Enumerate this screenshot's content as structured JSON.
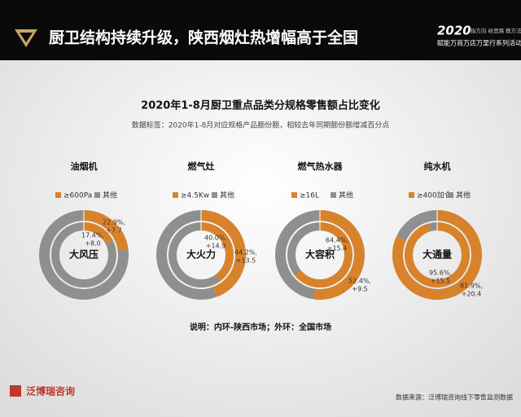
{
  "header": {
    "title": "厨卫结构持续升级，陕西烟灶热增幅高于全国",
    "badge_year": "2020",
    "badge_slogan": "指方向 给思路 教方法",
    "badge_event": "赋能万商万店万里行系列活动"
  },
  "chart_title": "2020年1-8月厨卫重点品类分规格零售额占比变化",
  "chart_subtitle": "数据标签：2020年1-8月对应规格产品额份额，相较去年同期额份额增减百分点",
  "note": "说明：内环-陕西市场；外环：全国市场",
  "footer": {
    "brand": "泛博瑞咨询",
    "source": "数据来源：泛博瑞咨询线下零售监测数据"
  },
  "chart_data": [
    {
      "type": "donut",
      "title": "油烟机",
      "center_label": "大风压",
      "series": [
        {
          "name": "≥600Pa",
          "color": "#d8832c",
          "values": [
            17.4,
            22.9
          ],
          "value_labels": [
            "17.4%,",
            "22.9%,"
          ],
          "changes": [
            8.0,
            7.7
          ],
          "change_labels": [
            "+8.0",
            "+7.7"
          ]
        },
        {
          "name": "其他",
          "color": "#8f8f8f"
        }
      ]
    },
    {
      "type": "donut",
      "title": "燃气灶",
      "center_label": "大火力",
      "series": [
        {
          "name": "≥4.5Kw",
          "color": "#d8832c",
          "values": [
            40.0,
            44.2
          ],
          "value_labels": [
            "40.0%,",
            "44.2%,"
          ],
          "changes": [
            14.9,
            13.5
          ],
          "change_labels": [
            "+14.9",
            "+13.5"
          ]
        },
        {
          "name": "其他",
          "color": "#8f8f8f"
        }
      ]
    },
    {
      "type": "donut",
      "title": "燃气热水器",
      "center_label": "大容积",
      "series": [
        {
          "name": "≥16L",
          "color": "#d8832c",
          "values": [
            64.4,
            52.4
          ],
          "value_labels": [
            "64.4%,",
            "52.4%,"
          ],
          "changes": [
            15.4,
            9.5
          ],
          "change_labels": [
            "+15.4",
            "+9.5"
          ]
        },
        {
          "name": "其他",
          "color": "#8f8f8f"
        }
      ]
    },
    {
      "type": "donut",
      "title": "纯水机",
      "center_label": "大通量",
      "series": [
        {
          "name": "≥400加仑",
          "color": "#d8832c",
          "values": [
            95.6,
            81.9
          ],
          "value_labels": [
            "95.6%,",
            "81.9%,"
          ],
          "changes": [
            15.5,
            20.4
          ],
          "change_labels": [
            "+15.5",
            "+20.4"
          ]
        },
        {
          "name": "其他",
          "color": "#8f8f8f"
        }
      ]
    }
  ]
}
